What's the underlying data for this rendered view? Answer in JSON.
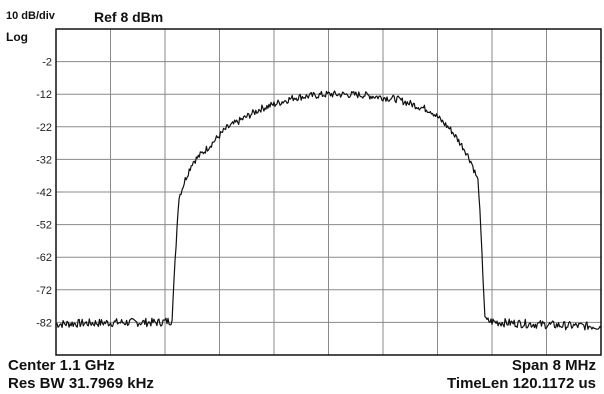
{
  "header": {
    "scale_label": "10 dB/div",
    "ref_label": "Ref 8 dBm",
    "log_label": "Log"
  },
  "footer": {
    "center_label": "Center 1.1 GHz",
    "span_label": "Span 8 MHz",
    "rbw_label": "Res BW 31.7969 kHz",
    "timelen_label": "TimeLen 120.1172 us"
  },
  "chart_data": {
    "type": "line",
    "title": "",
    "xlabel": "",
    "ylabel": "",
    "x_unit": "MHz",
    "y_unit": "dBm",
    "ylim": [
      -92,
      8
    ],
    "xlim": [
      1096,
      1104
    ],
    "grid": true,
    "y_ticks": [
      -2,
      -12,
      -22,
      -32,
      -42,
      -52,
      -62,
      -72,
      -82
    ],
    "y_tick_labels": [
      "-2",
      "-12",
      "-22",
      "-32",
      "-42",
      "-52",
      "-62",
      "-72",
      "-82"
    ],
    "series": [
      {
        "color": "#111111",
        "x": [
          1096.0,
          1096.5,
          1097.0,
          1097.5,
          1097.7,
          1097.8,
          1097.9,
          1098.0,
          1098.2,
          1098.5,
          1099.0,
          1099.5,
          1100.0,
          1100.5,
          1101.0,
          1101.5,
          1101.8,
          1102.0,
          1102.1,
          1102.2,
          1102.3,
          1102.5,
          1103.0,
          1103.5,
          1104.0
        ],
        "values": [
          -82.5,
          -82.2,
          -82.0,
          -82.0,
          -81.5,
          -44.0,
          -38.0,
          -33.0,
          -29.0,
          -22.5,
          -16.5,
          -13.0,
          -12.0,
          -12.2,
          -13.5,
          -17.0,
          -23.0,
          -29.0,
          -33.0,
          -39.0,
          -81.5,
          -82.0,
          -82.5,
          -83.0,
          -83.2
        ]
      }
    ]
  },
  "colors": {
    "trace": "#111111",
    "grid": "#8a8a8a",
    "frame": "#111111",
    "background": "#ffffff"
  }
}
